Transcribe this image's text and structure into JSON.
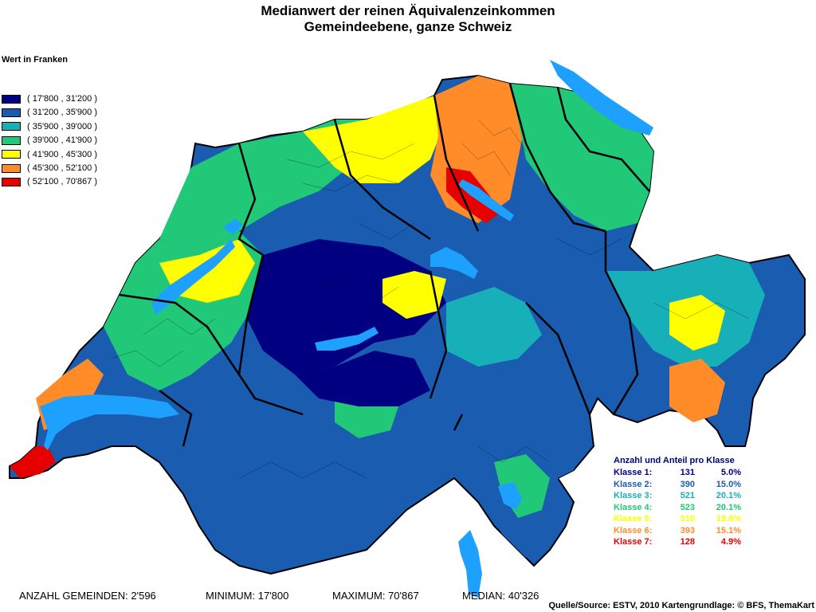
{
  "title": {
    "line1": "Medianwert der reinen Äquivalenzeinkommen",
    "line2": "Gemeindeebene, ganze Schweiz"
  },
  "legend": {
    "title": "Wert in Franken",
    "items": [
      {
        "label": "( 17'800 , 31'200 )",
        "color": "#000080"
      },
      {
        "label": "( 31'200 , 35'900 )",
        "color": "#1A5CB0"
      },
      {
        "label": "( 35'900 , 39'000 )",
        "color": "#18B0B8"
      },
      {
        "label": "( 39'000 , 41'900 )",
        "color": "#20C878"
      },
      {
        "label": "( 41'900 , 45'300 )",
        "color": "#FFFF00"
      },
      {
        "label": "( 45'300 , 52'100 )",
        "color": "#FF8C28"
      },
      {
        "label": "( 52'100 , 70'867 )",
        "color": "#E60000"
      }
    ]
  },
  "stats": {
    "title": "Anzahl und Anteil pro Klasse",
    "rows": [
      {
        "label": "Klasse 1:",
        "count": "131",
        "pct": "5.0%",
        "color": "#000080"
      },
      {
        "label": "Klasse 2:",
        "count": "390",
        "pct": "15.0%",
        "color": "#1A5CB0"
      },
      {
        "label": "Klasse 3:",
        "count": "521",
        "pct": "20.1%",
        "color": "#18B0B8"
      },
      {
        "label": "Klasse 4:",
        "count": "523",
        "pct": "20.1%",
        "color": "#20C878"
      },
      {
        "label": "Klasse 5:",
        "count": "510",
        "pct": "19.6%",
        "color": "#FFFF00"
      },
      {
        "label": "Klasse 6:",
        "count": "393",
        "pct": "15.1%",
        "color": "#FF8C28"
      },
      {
        "label": "Klasse 7:",
        "count": "128",
        "pct": "4.9%",
        "color": "#E60000"
      }
    ]
  },
  "footer": {
    "count": "ANZAHL GEMEINDEN: 2'596",
    "minimum": "MINIMUM: 17'800",
    "maximum": "MAXIMUM: 70'867",
    "median": "MEDIAN: 40'326"
  },
  "source": "Quelle/Source: ESTV, 2010 Kartengrundlage: © BFS, ThemaKart",
  "colors": {
    "lake": "#1EA0FF",
    "border": "#000000"
  }
}
